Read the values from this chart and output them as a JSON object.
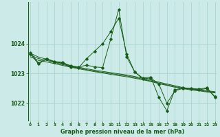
{
  "title": "Graphe pression niveau de la mer (hPa)",
  "background_color": "#cceae7",
  "grid_color": "#aad4d0",
  "line_color": "#1a5c1a",
  "x_ticks": [
    0,
    1,
    2,
    3,
    4,
    5,
    6,
    7,
    8,
    9,
    10,
    11,
    12,
    13,
    14,
    15,
    16,
    17,
    18,
    19,
    20,
    21,
    22,
    23
  ],
  "y_ticks": [
    1022,
    1023,
    1024
  ],
  "ylim": [
    1021.4,
    1025.4
  ],
  "xlim": [
    -0.3,
    23.3
  ],
  "main_data": [
    1023.7,
    1023.35,
    1023.5,
    1023.4,
    1023.38,
    1023.25,
    1023.22,
    1023.28,
    1023.22,
    1023.2,
    1024.15,
    1025.15,
    1023.55,
    1023.05,
    1022.85,
    1022.88,
    1022.2,
    1021.75,
    1022.45,
    1022.52,
    1022.5,
    1022.48,
    1022.52,
    1022.22
  ],
  "upper_jagged": [
    1023.65,
    1023.32,
    1023.48,
    1023.38,
    1023.35,
    1023.22,
    1023.19,
    1023.5,
    1023.75,
    1024.0,
    1024.4,
    1024.85,
    1023.65,
    1023.05,
    1022.82,
    1022.85,
    1022.65,
    1022.0,
    1022.42,
    1022.5,
    1022.48,
    1022.45,
    1022.5,
    1022.2
  ],
  "smooth_line1": [
    1023.68,
    1023.55,
    1023.48,
    1023.4,
    1023.33,
    1023.27,
    1023.21,
    1023.16,
    1023.11,
    1023.07,
    1023.03,
    1022.99,
    1022.95,
    1022.9,
    1022.84,
    1022.78,
    1022.71,
    1022.65,
    1022.59,
    1022.53,
    1022.49,
    1022.46,
    1022.42,
    1022.39
  ],
  "smooth_line2": [
    1023.62,
    1023.5,
    1023.44,
    1023.37,
    1023.3,
    1023.24,
    1023.18,
    1023.13,
    1023.08,
    1023.04,
    1023.0,
    1022.96,
    1022.92,
    1022.87,
    1022.81,
    1022.75,
    1022.68,
    1022.62,
    1022.56,
    1022.51,
    1022.47,
    1022.44,
    1022.4,
    1022.37
  ],
  "smooth_line3": [
    1023.56,
    1023.44,
    1023.39,
    1023.33,
    1023.27,
    1023.21,
    1023.16,
    1023.11,
    1023.06,
    1023.02,
    1022.97,
    1022.93,
    1022.89,
    1022.84,
    1022.79,
    1022.73,
    1022.66,
    1022.6,
    1022.54,
    1022.49,
    1022.45,
    1022.42,
    1022.38,
    1022.35
  ]
}
